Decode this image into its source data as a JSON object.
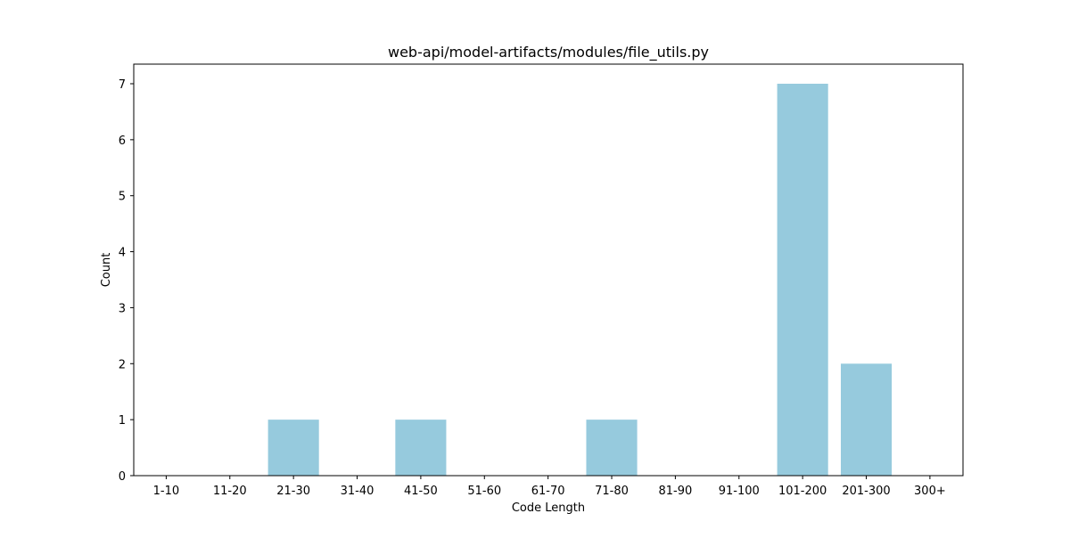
{
  "chart_data": {
    "type": "bar",
    "title": "web-api/model-artifacts/modules/file_utils.py",
    "xlabel": "Code Length",
    "ylabel": "Count",
    "categories": [
      "1-10",
      "11-20",
      "21-30",
      "31-40",
      "41-50",
      "51-60",
      "61-70",
      "71-80",
      "81-90",
      "91-100",
      "101-200",
      "201-300",
      "300+"
    ],
    "values": [
      0,
      0,
      1,
      0,
      1,
      0,
      0,
      1,
      0,
      0,
      7,
      2,
      0
    ],
    "ylim": [
      0,
      7.35
    ],
    "yticks": [
      0,
      1,
      2,
      3,
      4,
      5,
      6,
      7
    ],
    "grid": false,
    "legend": "none",
    "bar_color": "#96cadd",
    "axis_color": "#000000"
  }
}
